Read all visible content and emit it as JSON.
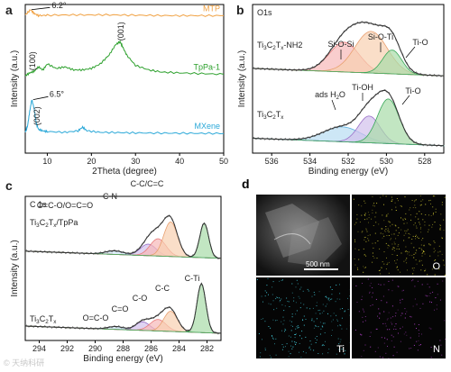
{
  "panels": {
    "a": "a",
    "b": "b",
    "c": "c",
    "d": "d"
  },
  "chart_data": [
    {
      "id": "a",
      "type": "line",
      "xlabel": "2Theta (degree)",
      "ylabel": "Intensity (a.u.)",
      "xlim": [
        5,
        50
      ],
      "xticks": [
        10,
        20,
        30,
        40,
        50
      ],
      "series": [
        {
          "name": "MTP",
          "color": "#f0a040",
          "x": [
            5,
            6.2,
            7,
            8,
            10,
            15,
            20,
            25,
            30,
            35,
            40,
            45,
            50
          ],
          "y": [
            0.93,
            0.965,
            0.94,
            0.925,
            0.928,
            0.93,
            0.93,
            0.93,
            0.928,
            0.926,
            0.925,
            0.925,
            0.925
          ]
        },
        {
          "name": "TpPa-1",
          "color": "#2ca02c",
          "x": [
            5,
            6,
            7,
            8,
            9,
            10,
            12,
            14,
            16,
            18,
            20,
            22,
            24,
            25.5,
            26.5,
            27,
            28,
            30,
            33,
            36,
            40,
            45,
            50
          ],
          "y": [
            0.52,
            0.54,
            0.55,
            0.58,
            0.56,
            0.6,
            0.57,
            0.58,
            0.56,
            0.56,
            0.57,
            0.6,
            0.66,
            0.73,
            0.75,
            0.72,
            0.66,
            0.59,
            0.56,
            0.545,
            0.54,
            0.535,
            0.53
          ]
        },
        {
          "name": "MXene",
          "color": "#2aa8d8",
          "x": [
            5,
            5.5,
            6,
            6.5,
            7,
            7.5,
            8,
            9,
            10,
            14,
            17,
            18,
            19,
            22,
            26,
            30,
            35,
            40,
            45,
            50
          ],
          "y": [
            0.14,
            0.18,
            0.28,
            0.36,
            0.3,
            0.2,
            0.16,
            0.15,
            0.145,
            0.14,
            0.15,
            0.175,
            0.15,
            0.14,
            0.138,
            0.136,
            0.135,
            0.134,
            0.133,
            0.132
          ]
        }
      ],
      "annotations": [
        {
          "text": "6.2°",
          "x": 6.2,
          "y": 0.965
        },
        {
          "text": "(100)",
          "x": 7.2,
          "y": 0.63
        },
        {
          "text": "(001)",
          "x": 27,
          "y": 0.8
        },
        {
          "text": "6.5°",
          "x": 6.5,
          "y": 0.36
        },
        {
          "text": "(002)",
          "x": 6.5,
          "y": 0.22
        }
      ]
    },
    {
      "id": "b",
      "type": "line",
      "title": "O1s",
      "xlabel": "Binding energy (eV)",
      "ylabel": "Intensity (a.u.)",
      "xlim": [
        537,
        527
      ],
      "xticks": [
        536,
        534,
        532,
        530,
        528
      ],
      "spectra": [
        {
          "sample": "Ti3C2Tx-NH2",
          "offset": 0.5,
          "envelope_color": "#333333",
          "components": [
            {
              "label": "Si-O-Si",
              "center": 532.2,
              "height": 0.2,
              "width": 1.1,
              "color": "#e87a7a",
              "fill": "#f6b8b8"
            },
            {
              "label": "Si-O-Ti",
              "center": 530.8,
              "height": 0.28,
              "width": 1.2,
              "color": "#e8a070",
              "fill": "#f8d0b0"
            },
            {
              "label": "Ti-O",
              "center": 529.7,
              "height": 0.16,
              "width": 0.7,
              "color": "#3aa85a",
              "fill": "#a8dca8"
            }
          ]
        },
        {
          "sample": "Ti3C2Tx",
          "offset": 0.03,
          "envelope_color": "#333333",
          "components": [
            {
              "label": "ads H2O",
              "center": 532.3,
              "height": 0.1,
              "width": 1.4,
              "color": "#5ab0e0",
              "fill": "#b8ddf2"
            },
            {
              "label": "Ti-OH",
              "center": 530.9,
              "height": 0.18,
              "width": 0.8,
              "color": "#9a70c8",
              "fill": "#d2c0ec"
            },
            {
              "label": "Ti-O",
              "center": 529.9,
              "height": 0.3,
              "width": 0.8,
              "color": "#3aa85a",
              "fill": "#a8dca8"
            }
          ]
        }
      ]
    },
    {
      "id": "c",
      "type": "line",
      "title": "C 1s",
      "xlabel": "Binding energy (eV)",
      "ylabel": "Intensity (a.u.)",
      "xlim": [
        295,
        281
      ],
      "xticks": [
        294,
        292,
        290,
        288,
        286,
        284,
        282
      ],
      "spectra": [
        {
          "sample": "Ti3C2Tx/TpPa",
          "offset": 0.55,
          "envelope_color": "#333333",
          "components": [
            {
              "label": "O=C-O/O=C=O",
              "center": 288.6,
              "height": 0.025,
              "width": 0.9,
              "color": "#7fb8e6",
              "fill": "#cfe6f7"
            },
            {
              "label": "C-N",
              "center": 286.2,
              "height": 0.08,
              "width": 0.8,
              "color": "#9a70c8",
              "fill": "#d2c0ec"
            },
            {
              "label": "C-O",
              "center": 285.5,
              "height": 0.12,
              "width": 0.8,
              "color": "#e87a7a",
              "fill": "#f6b8b8"
            },
            {
              "label": "C-C/C=C",
              "center": 284.6,
              "height": 0.24,
              "width": 0.7,
              "color": "#e8a070",
              "fill": "#f8d0b0"
            },
            {
              "label": "C-Ti",
              "center": 282.2,
              "height": 0.24,
              "width": 0.45,
              "color": "#3aa85a",
              "fill": "#a8dca8"
            }
          ]
        },
        {
          "sample": "Ti3C2Tx",
          "offset": 0.03,
          "envelope_color": "#333333",
          "components": [
            {
              "label": "O=C-O",
              "center": 288.5,
              "height": 0.02,
              "width": 0.8,
              "color": "#7fb8e6",
              "fill": "#cfe6f7"
            },
            {
              "label": "C=O",
              "center": 286.6,
              "height": 0.06,
              "width": 0.7,
              "color": "#9a70c8",
              "fill": "#d2c0ec"
            },
            {
              "label": "C-O",
              "center": 285.5,
              "height": 0.08,
              "width": 0.8,
              "color": "#e87a7a",
              "fill": "#f6b8b8"
            },
            {
              "label": "C-C",
              "center": 284.6,
              "height": 0.14,
              "width": 0.7,
              "color": "#e8a070",
              "fill": "#f8d0b0"
            },
            {
              "label": "C-Ti",
              "center": 282.4,
              "height": 0.34,
              "width": 0.45,
              "color": "#3aa85a",
              "fill": "#a8dca8"
            }
          ]
        }
      ]
    }
  ],
  "em_maps": {
    "scale_bar": "500 nm",
    "tiles": [
      {
        "label": "",
        "element": "SEM",
        "color": "#9a9a9a"
      },
      {
        "label": "O",
        "element": "O",
        "color": "#c8c030"
      },
      {
        "label": "Ti",
        "element": "Ti",
        "color": "#40c8d8"
      },
      {
        "label": "N",
        "element": "N",
        "color": "#b040c8"
      }
    ]
  },
  "watermark": "© 天纳科研"
}
